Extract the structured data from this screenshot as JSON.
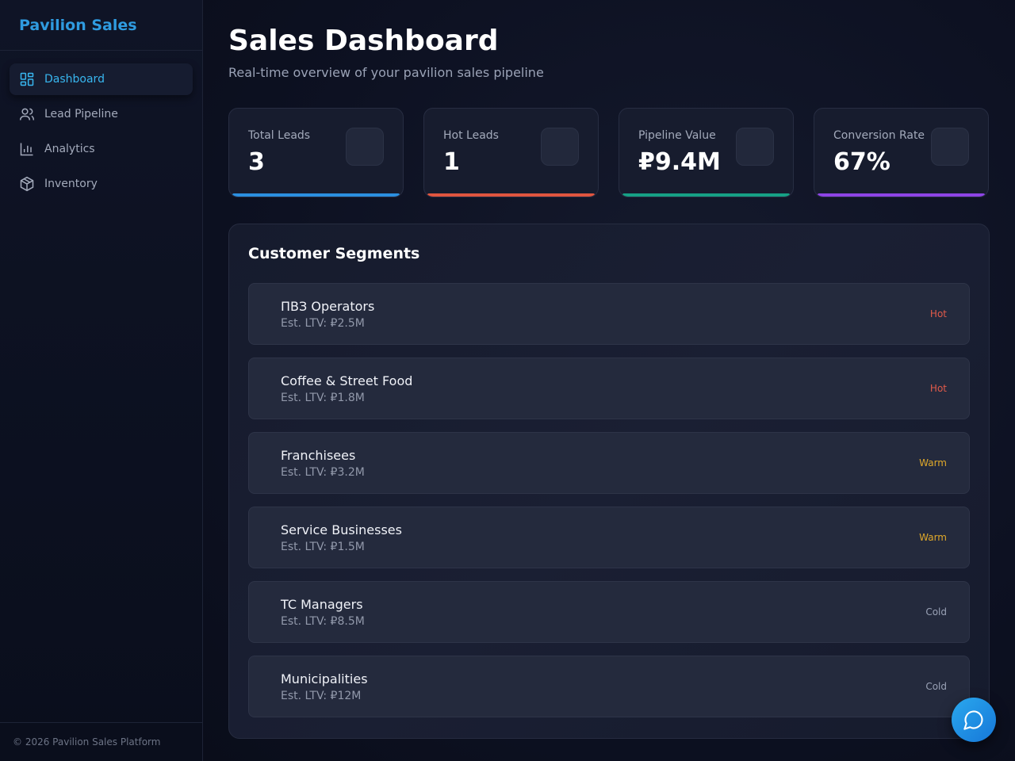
{
  "sidebar": {
    "brand": "Pavilion Sales",
    "items": [
      {
        "label": "Dashboard",
        "icon": "dashboard-icon",
        "active": true
      },
      {
        "label": "Lead Pipeline",
        "icon": "users-icon",
        "active": false
      },
      {
        "label": "Analytics",
        "icon": "bar-chart-icon",
        "active": false
      },
      {
        "label": "Inventory",
        "icon": "package-icon",
        "active": false
      }
    ],
    "footer": "© 2026 Pavilion Sales Platform"
  },
  "header": {
    "title": "Sales Dashboard",
    "subtitle": "Real-time overview of your pavilion sales pipeline"
  },
  "stats": [
    {
      "label": "Total Leads",
      "value": "3",
      "color": "#2b8fe0"
    },
    {
      "label": "Hot Leads",
      "value": "1",
      "color": "#e0553f"
    },
    {
      "label": "Pipeline Value",
      "value": "₽9.4M",
      "color": "#16a085"
    },
    {
      "label": "Conversion Rate",
      "value": "67%",
      "color": "#8e44e6"
    }
  ],
  "segments": {
    "title": "Customer Segments",
    "items": [
      {
        "name": "ПВЗ Operators",
        "ltv": "Est. LTV: ₽2.5M",
        "tag": "Hot",
        "tag_color": "#e05a4a"
      },
      {
        "name": "Coffee & Street Food",
        "ltv": "Est. LTV: ₽1.8M",
        "tag": "Hot",
        "tag_color": "#e05a4a"
      },
      {
        "name": "Franchisees",
        "ltv": "Est. LTV: ₽3.2M",
        "tag": "Warm",
        "tag_color": "#e0a92a"
      },
      {
        "name": "Service Businesses",
        "ltv": "Est. LTV: ₽1.5M",
        "tag": "Warm",
        "tag_color": "#e0a92a"
      },
      {
        "name": "TC Managers",
        "ltv": "Est. LTV: ₽8.5M",
        "tag": "Cold",
        "tag_color": "#9aa2b6"
      },
      {
        "name": "Municipalities",
        "ltv": "Est. LTV: ₽12M",
        "tag": "Cold",
        "tag_color": "#9aa2b6"
      }
    ]
  },
  "chat": {
    "icon": "chat-bubble-icon"
  }
}
